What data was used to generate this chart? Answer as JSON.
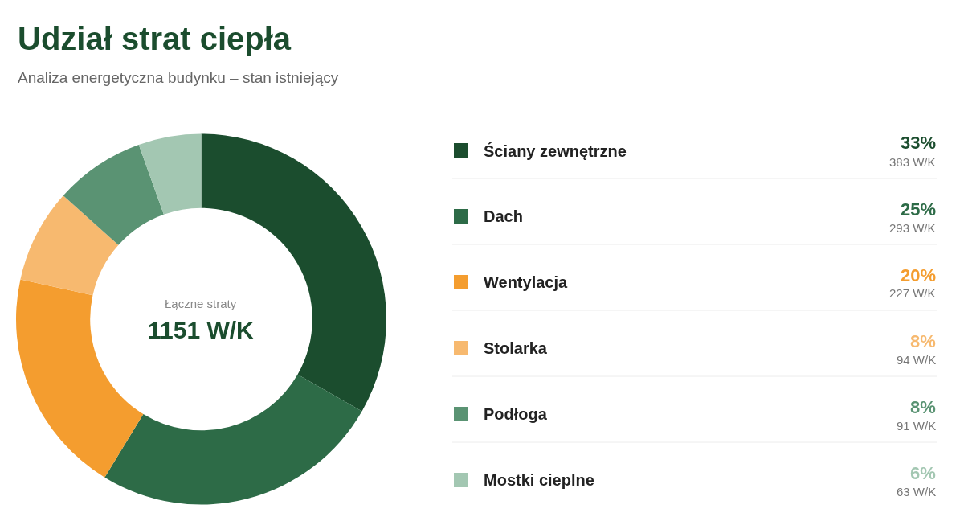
{
  "chart_data": {
    "type": "donut",
    "title": "Udział strat ciepła",
    "subtitle": "Analiza energetyczna budynku – stan istniejący",
    "categories": [
      "Ściany zewnętrzne",
      "Dach",
      "Wentylacja",
      "Stolarka",
      "Podłoga",
      "Mostki cieplne"
    ],
    "values": [
      383,
      293,
      227,
      94,
      91,
      63
    ],
    "colors": [
      "#1b4d2e",
      "#2d6b47",
      "#f49d2f",
      "#f7b96f",
      "#5a9373",
      "#a3c7b2"
    ],
    "value_labels": [
      "33%\n383 W/K",
      "25%\n293 W/K",
      "20%\n227 W/K",
      "8%\n94 W/K",
      "8%\n91 W/K",
      "6%\n63 W/K"
    ],
    "annotations": [
      "Łączne straty",
      "1151 W/K"
    ],
    "legend": "right"
  }
}
